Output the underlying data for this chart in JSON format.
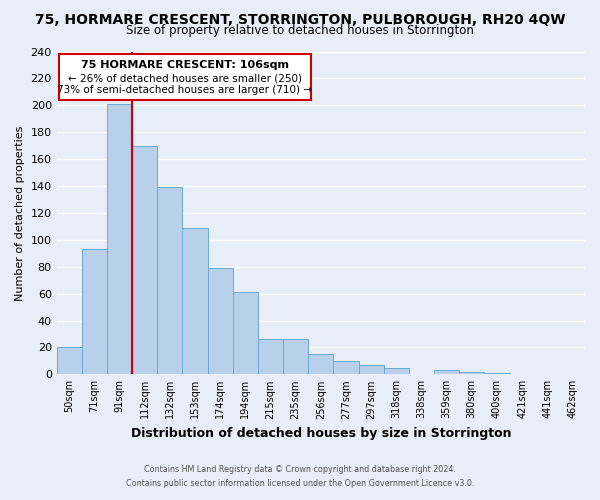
{
  "title": "75, HORMARE CRESCENT, STORRINGTON, PULBOROUGH, RH20 4QW",
  "subtitle": "Size of property relative to detached houses in Storrington",
  "xlabel": "Distribution of detached houses by size in Storrington",
  "ylabel": "Number of detached properties",
  "bar_labels": [
    "50sqm",
    "71sqm",
    "91sqm",
    "112sqm",
    "132sqm",
    "153sqm",
    "174sqm",
    "194sqm",
    "215sqm",
    "235sqm",
    "256sqm",
    "277sqm",
    "297sqm",
    "318sqm",
    "338sqm",
    "359sqm",
    "380sqm",
    "400sqm",
    "421sqm",
    "441sqm",
    "462sqm"
  ],
  "bar_values": [
    20,
    93,
    201,
    170,
    139,
    109,
    79,
    61,
    26,
    26,
    15,
    10,
    7,
    5,
    0,
    3,
    2,
    1,
    0,
    0,
    0
  ],
  "bar_color": "#b8d0ea",
  "bar_edge_color": "#6aaad4",
  "background_color": "#e8eef7",
  "grid_color": "#ffffff",
  "ylim": [
    0,
    240
  ],
  "yticks": [
    0,
    20,
    40,
    60,
    80,
    100,
    120,
    140,
    160,
    180,
    200,
    220,
    240
  ],
  "annotation_box_text_line1": "75 HORMARE CRESCENT: 106sqm",
  "annotation_box_text_line2": "← 26% of detached houses are smaller (250)",
  "annotation_box_text_line3": "73% of semi-detached houses are larger (710) →",
  "annotation_box_color": "#ffffff",
  "annotation_box_edge": "#cc0000",
  "property_line_color": "#cc0000",
  "footer_line1": "Contains HM Land Registry data © Crown copyright and database right 2024.",
  "footer_line2": "Contains public sector information licensed under the Open Government Licence v3.0."
}
